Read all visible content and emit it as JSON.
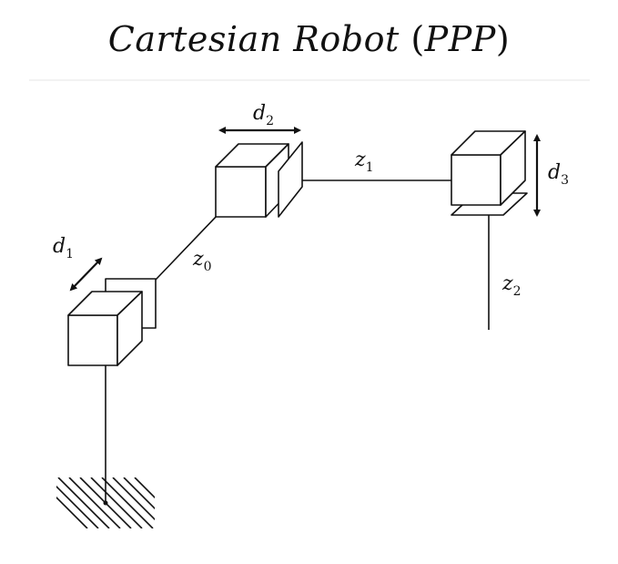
{
  "title": {
    "name": "Cartesian Robot",
    "open": "(",
    "code": "PPP",
    "close": ")"
  },
  "labels": {
    "d1": {
      "base": "d",
      "sub": "1"
    },
    "d2": {
      "base": "d",
      "sub": "2"
    },
    "d3": {
      "base": "d",
      "sub": "3"
    },
    "z0": {
      "base": "z",
      "sub": "0"
    },
    "z1": {
      "base": "z",
      "sub": "1"
    },
    "z2": {
      "base": "z",
      "sub": "2"
    }
  }
}
